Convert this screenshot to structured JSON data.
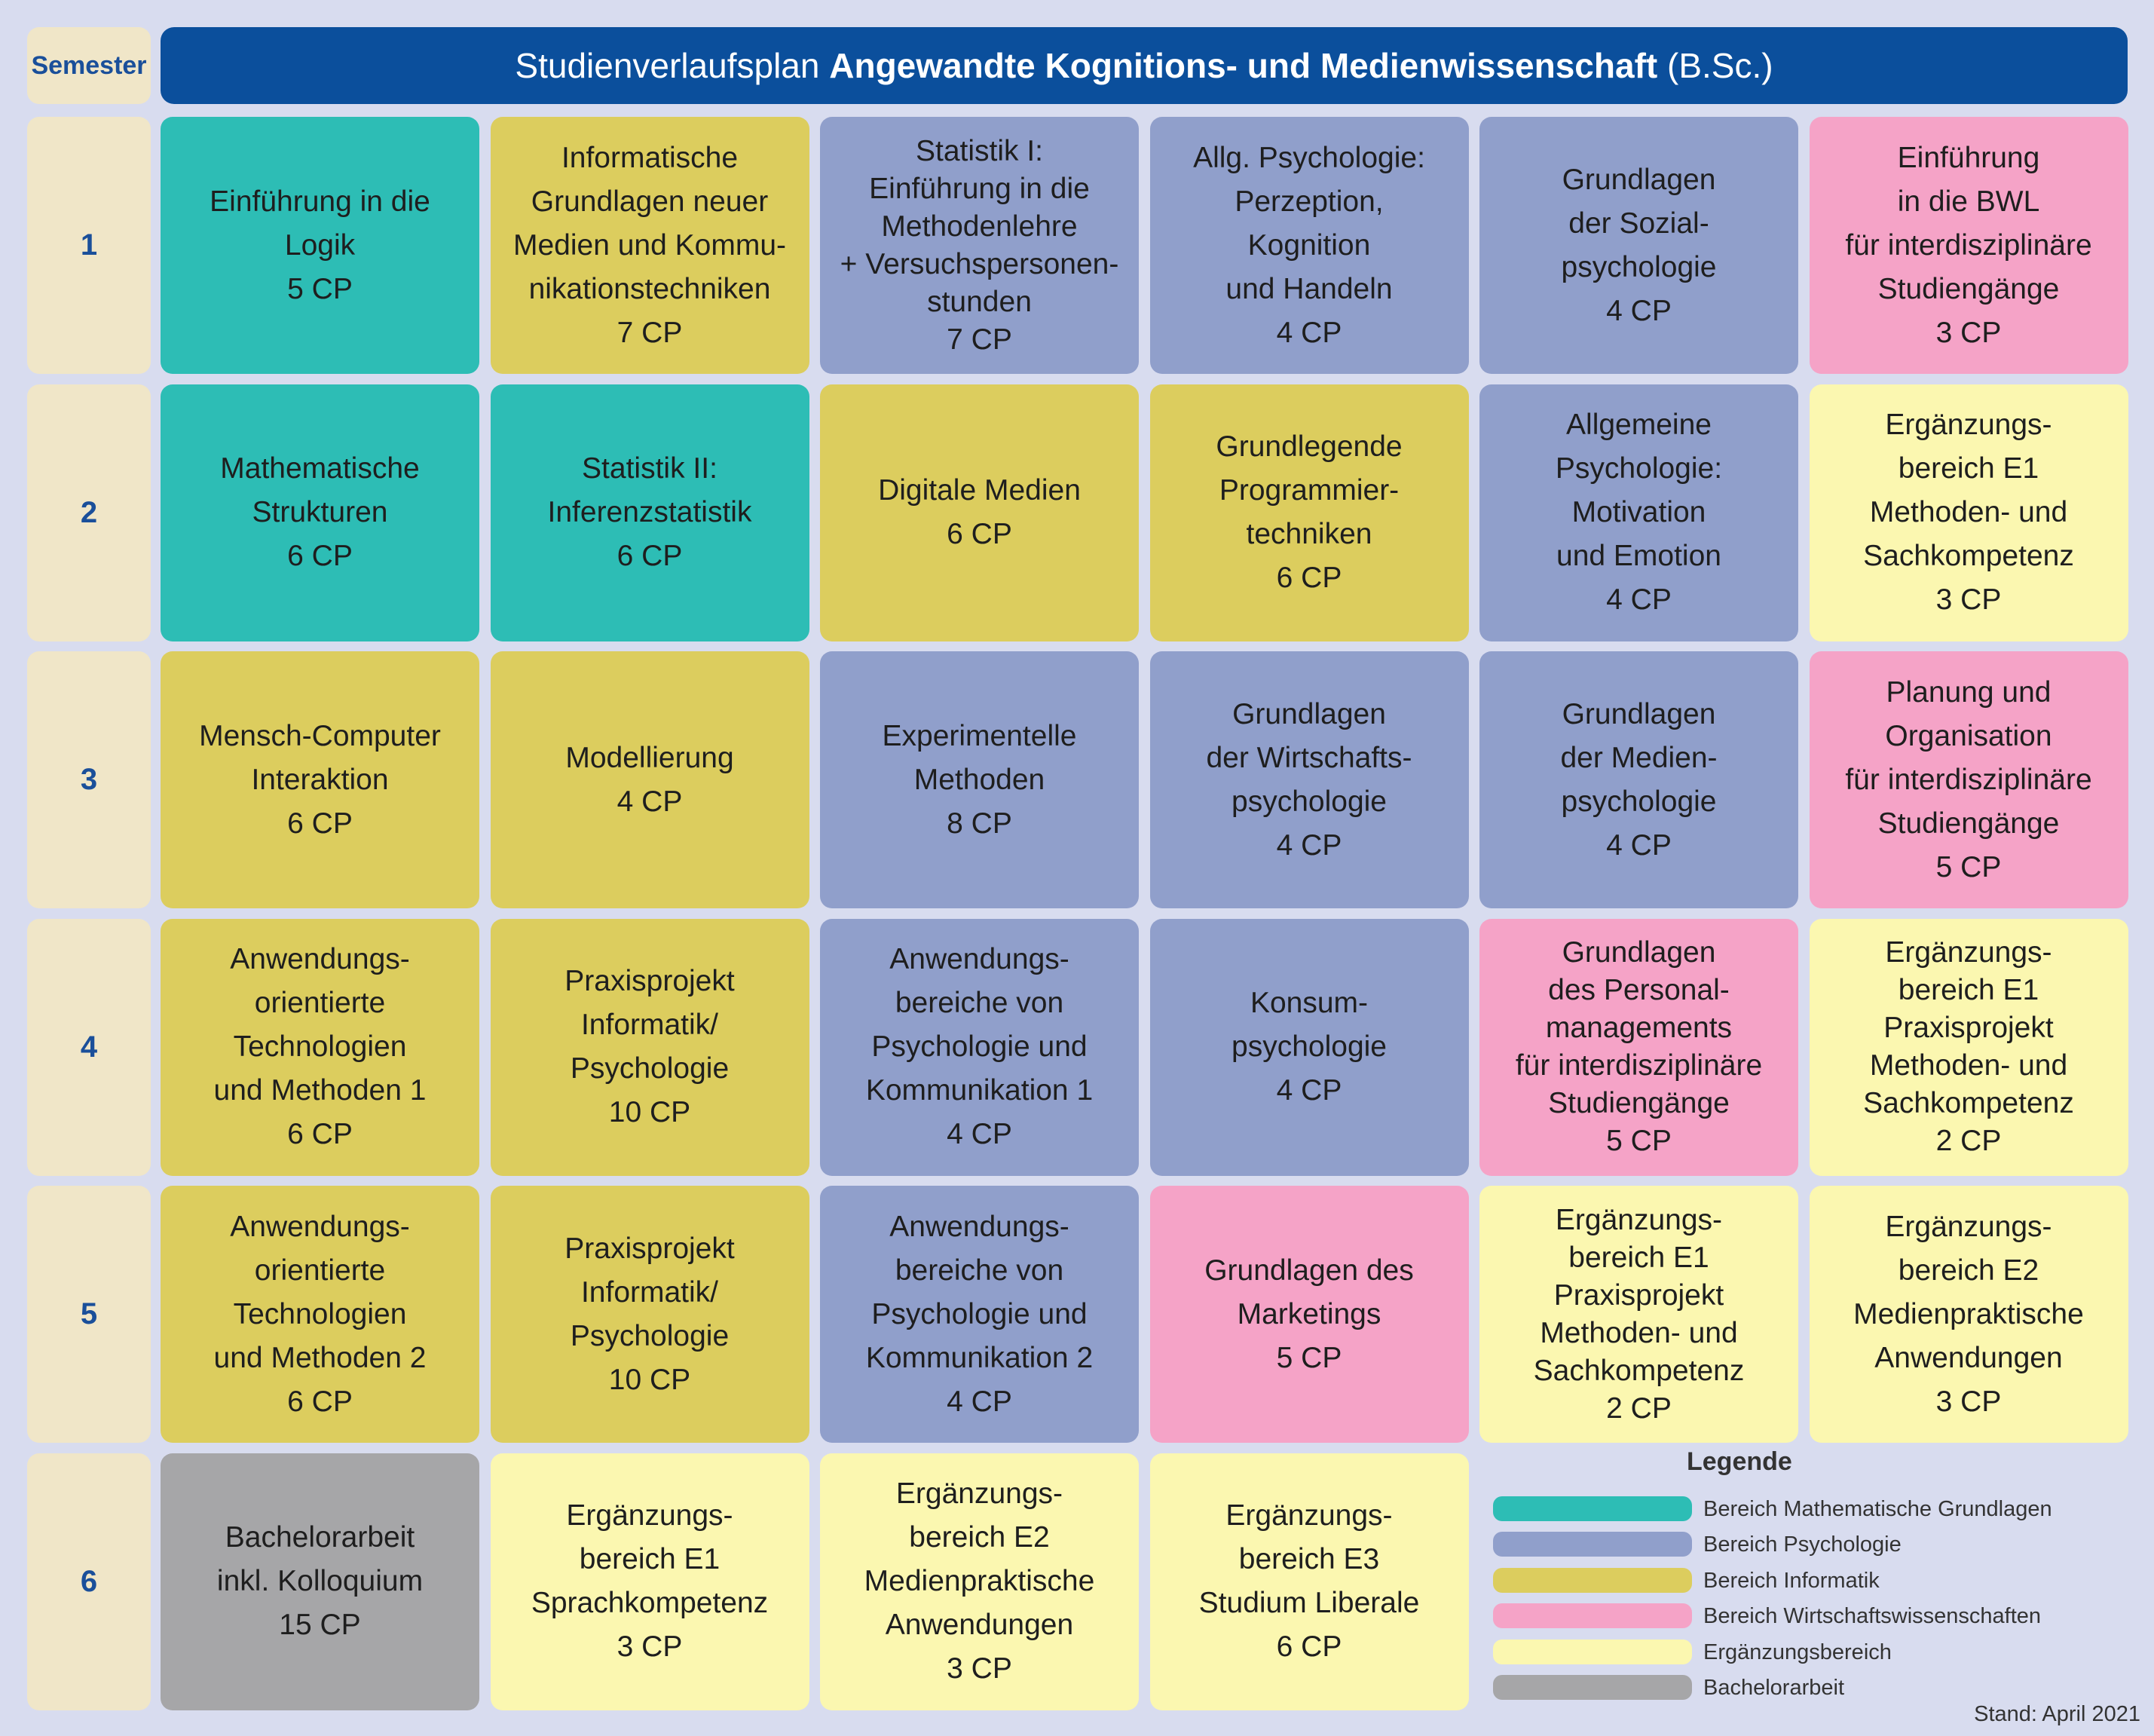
{
  "header": {
    "semester_label": "Semester",
    "title_prefix": "Studienverlaufsplan",
    "title_bold": "Angewandte Kognitions- und Medienwissenschaft",
    "title_suffix": "(B.Sc.)"
  },
  "rows": [
    {
      "semester": "1",
      "cells": [
        {
          "lines": [
            "Einführung in die",
            "Logik"
          ],
          "credits": "5 CP",
          "color": "#2dbdb5"
        },
        {
          "lines": [
            "Informatische",
            "Grundlagen neuer",
            "Medien und Kommu-",
            "nikationstechniken"
          ],
          "credits": "7 CP",
          "color": "#dccd5e"
        },
        {
          "lines": [
            "Statistik I:",
            "Einführung in die",
            "Methodenlehre",
            "+ Versuchspersonen-",
            "stunden"
          ],
          "credits": "7 CP",
          "color": "#909fcb"
        },
        {
          "lines": [
            "Allg. Psychologie:",
            "Perzeption,",
            "Kognition",
            "und Handeln"
          ],
          "credits": "4 CP",
          "color": "#909fcb"
        },
        {
          "lines": [
            "Grundlagen",
            "der Sozial-",
            "psychologie"
          ],
          "credits": "4 CP",
          "color": "#909fcb"
        },
        {
          "lines": [
            "Einführung",
            "in die BWL",
            "für interdisziplinäre",
            "Studiengänge"
          ],
          "credits": "3 CP",
          "color": "#f5a3c7"
        }
      ]
    },
    {
      "semester": "2",
      "cells": [
        {
          "lines": [
            "Mathematische",
            "Strukturen"
          ],
          "credits": "6 CP",
          "color": "#2dbdb5"
        },
        {
          "lines": [
            "Statistik II:",
            "Inferenzstatistik"
          ],
          "credits": "6 CP",
          "color": "#2dbdb5"
        },
        {
          "lines": [
            "Digitale Medien"
          ],
          "credits": "6 CP",
          "color": "#dccd5e"
        },
        {
          "lines": [
            "Grundlegende",
            "Programmier-",
            "techniken"
          ],
          "credits": "6 CP",
          "color": "#dccd5e"
        },
        {
          "lines": [
            "Allgemeine",
            "Psychologie:",
            "Motivation",
            "und Emotion"
          ],
          "credits": "4 CP",
          "color": "#909fcb"
        },
        {
          "lines": [
            "Ergänzungs-",
            "bereich E1",
            "Methoden- und",
            "Sachkompetenz"
          ],
          "credits": "3 CP",
          "color": "#fbf7b0"
        }
      ]
    },
    {
      "semester": "3",
      "cells": [
        {
          "lines": [
            "Mensch-Computer",
            "Interaktion"
          ],
          "credits": "6 CP",
          "color": "#dccd5e"
        },
        {
          "lines": [
            "Modellierung"
          ],
          "credits": "4 CP",
          "color": "#dccd5e"
        },
        {
          "lines": [
            "Experimentelle",
            "Methoden"
          ],
          "credits": "8 CP",
          "color": "#909fcb"
        },
        {
          "lines": [
            "Grundlagen",
            "der Wirtschafts-",
            "psychologie"
          ],
          "credits": "4 CP",
          "color": "#909fcb"
        },
        {
          "lines": [
            "Grundlagen",
            "der Medien-",
            "psychologie"
          ],
          "credits": "4 CP",
          "color": "#909fcb"
        },
        {
          "lines": [
            "Planung und",
            "Organisation",
            "für interdisziplinäre",
            "Studiengänge"
          ],
          "credits": "5 CP",
          "color": "#f5a3c7"
        }
      ]
    },
    {
      "semester": "4",
      "cells": [
        {
          "lines": [
            "Anwendungs-",
            "orientierte",
            "Technologien",
            "und Methoden 1"
          ],
          "credits": "6 CP",
          "color": "#dccd5e"
        },
        {
          "lines": [
            "Praxisprojekt",
            "Informatik/",
            "Psychologie"
          ],
          "credits": "10 CP",
          "color": "#dccd5e"
        },
        {
          "lines": [
            "Anwendungs-",
            "bereiche von",
            "Psychologie und",
            "Kommunikation 1"
          ],
          "credits": "4 CP",
          "color": "#909fcb"
        },
        {
          "lines": [
            "Konsum-",
            "psychologie"
          ],
          "credits": "4 CP",
          "color": "#909fcb"
        },
        {
          "lines": [
            "Grundlagen",
            "des Personal-",
            "managements",
            "für interdisziplinäre",
            "Studiengänge"
          ],
          "credits": "5 CP",
          "color": "#f5a3c7"
        },
        {
          "lines": [
            "Ergänzungs-",
            "bereich E1",
            "Praxisprojekt",
            "Methoden- und",
            "Sachkompetenz"
          ],
          "credits": "2 CP",
          "color": "#fbf7b0"
        }
      ]
    },
    {
      "semester": "5",
      "cells": [
        {
          "lines": [
            "Anwendungs-",
            "orientierte",
            "Technologien",
            "und Methoden 2"
          ],
          "credits": "6 CP",
          "color": "#dccd5e"
        },
        {
          "lines": [
            "Praxisprojekt",
            "Informatik/",
            "Psychologie"
          ],
          "credits": "10 CP",
          "color": "#dccd5e"
        },
        {
          "lines": [
            "Anwendungs-",
            "bereiche von",
            "Psychologie und",
            "Kommunikation 2"
          ],
          "credits": "4 CP",
          "color": "#909fcb"
        },
        {
          "lines": [
            "Grundlagen des",
            "Marketings"
          ],
          "credits": "5 CP",
          "color": "#f5a3c7"
        },
        {
          "lines": [
            "Ergänzungs-",
            "bereich E1",
            "Praxisprojekt",
            "Methoden- und",
            "Sachkompetenz"
          ],
          "credits": "2 CP",
          "color": "#fbf7b0"
        },
        {
          "lines": [
            "Ergänzungs-",
            "bereich E2",
            "Medienpraktische",
            "Anwendungen"
          ],
          "credits": "3 CP",
          "color": "#fbf7b0"
        }
      ]
    },
    {
      "semester": "6",
      "cells": [
        {
          "lines": [
            "Bachelorarbeit",
            "inkl. Kolloquium"
          ],
          "credits": "15 CP",
          "color": "#a6a6a8"
        },
        {
          "lines": [
            "Ergänzungs-",
            "bereich E1",
            "Sprachkompetenz"
          ],
          "credits": "3 CP",
          "color": "#fbf7b0"
        },
        {
          "lines": [
            "Ergänzungs-",
            "bereich E2",
            "Medienpraktische",
            "Anwendungen"
          ],
          "credits": "3 CP",
          "color": "#fbf7b0"
        },
        {
          "lines": [
            "Ergänzungs-",
            "bereich E3",
            "Studium Liberale"
          ],
          "credits": "6 CP",
          "color": "#fbf7b0"
        }
      ]
    }
  ],
  "legend": {
    "title": "Legende",
    "items": [
      {
        "label": "Bereich Mathematische Grundlagen",
        "color": "#2dbdb5"
      },
      {
        "label": "Bereich Psychologie",
        "color": "#909fcb"
      },
      {
        "label": "Bereich Informatik",
        "color": "#dccd5e"
      },
      {
        "label": "Bereich Wirtschaftswissenschaften",
        "color": "#f5a3c7"
      },
      {
        "label": "Ergänzungsbereich",
        "color": "#fbf7b0"
      },
      {
        "label": "Bachelorarbeit",
        "color": "#a6a6a8"
      }
    ]
  },
  "footer": "Stand: April 2021"
}
